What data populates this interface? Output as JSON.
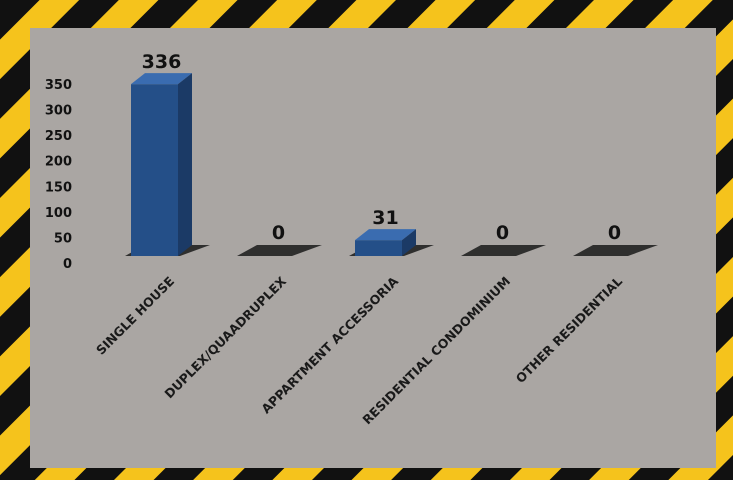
{
  "colors": {
    "panel": "#aaa6a3",
    "stripe_yellow": "#f5c31c",
    "stripe_black": "#111111",
    "bar_front": "#244f88",
    "bar_top": "#3a6cb0",
    "bar_side": "#1b3a66"
  },
  "chart_data": {
    "type": "bar",
    "categories": [
      "SINGLE HOUSE",
      "DUPLEX/QUAADRUPLEX",
      "APPARTMENT ACCESSORIA",
      "RESIDENTIAL CONDOMINIUM",
      "OTHER RESIDENTIAL"
    ],
    "values": [
      336,
      0,
      31,
      0,
      0
    ],
    "data_labels": [
      "336",
      "0",
      "31",
      "0",
      "0"
    ],
    "ylim": [
      0,
      350
    ],
    "yticks": [
      0,
      50,
      100,
      150,
      200,
      250,
      300,
      350
    ],
    "title": "",
    "xlabel": "",
    "ylabel": "",
    "grid": false,
    "legend": "none",
    "style": "3d-column"
  }
}
